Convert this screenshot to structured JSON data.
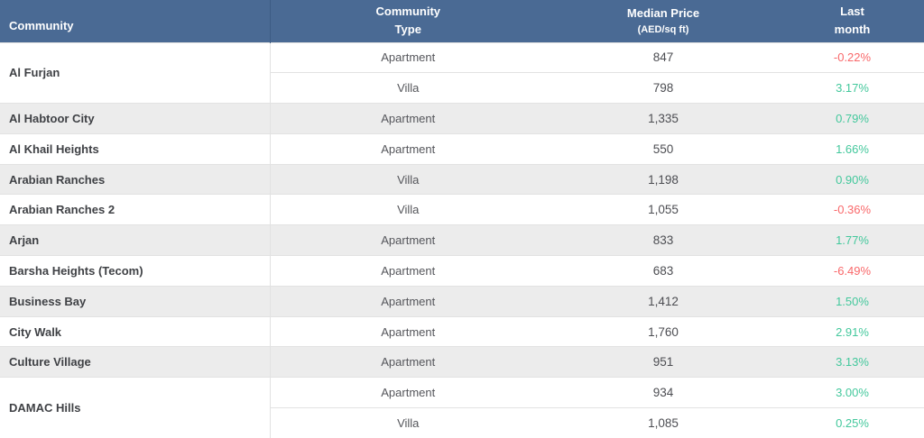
{
  "table": {
    "columns": [
      {
        "lines": [
          "Community"
        ]
      },
      {
        "lines": [
          "Community",
          "Type"
        ]
      },
      {
        "lines": [
          "Median Price",
          "(AED/sq ft)"
        ],
        "second_line_small": true
      },
      {
        "lines": [
          "Last",
          "month"
        ]
      }
    ],
    "groups": [
      {
        "community": "Al Furjan",
        "rows": [
          {
            "type": "Apartment",
            "price": "847",
            "change": "-0.22%",
            "direction": "down"
          },
          {
            "type": "Villa",
            "price": "798",
            "change": "3.17%",
            "direction": "up"
          }
        ]
      },
      {
        "community": "Al Habtoor City",
        "rows": [
          {
            "type": "Apartment",
            "price": "1,335",
            "change": "0.79%",
            "direction": "up"
          }
        ]
      },
      {
        "community": "Al Khail Heights",
        "rows": [
          {
            "type": "Apartment",
            "price": "550",
            "change": "1.66%",
            "direction": "up"
          }
        ]
      },
      {
        "community": "Arabian Ranches",
        "rows": [
          {
            "type": "Villa",
            "price": "1,198",
            "change": "0.90%",
            "direction": "up"
          }
        ]
      },
      {
        "community": "Arabian Ranches 2",
        "rows": [
          {
            "type": "Villa",
            "price": "1,055",
            "change": "-0.36%",
            "direction": "down"
          }
        ]
      },
      {
        "community": "Arjan",
        "rows": [
          {
            "type": "Apartment",
            "price": "833",
            "change": "1.77%",
            "direction": "up"
          }
        ]
      },
      {
        "community": "Barsha Heights (Tecom)",
        "rows": [
          {
            "type": "Apartment",
            "price": "683",
            "change": "-6.49%",
            "direction": "down"
          }
        ]
      },
      {
        "community": "Business Bay",
        "rows": [
          {
            "type": "Apartment",
            "price": "1,412",
            "change": "1.50%",
            "direction": "up"
          }
        ]
      },
      {
        "community": "City Walk",
        "rows": [
          {
            "type": "Apartment",
            "price": "1,760",
            "change": "2.91%",
            "direction": "up"
          }
        ]
      },
      {
        "community": "Culture Village",
        "rows": [
          {
            "type": "Apartment",
            "price": "951",
            "change": "3.13%",
            "direction": "up"
          }
        ]
      },
      {
        "community": "DAMAC Hills",
        "rows": [
          {
            "type": "Apartment",
            "price": "934",
            "change": "3.00%",
            "direction": "up"
          },
          {
            "type": "Villa",
            "price": "1,085",
            "change": "0.25%",
            "direction": "up"
          }
        ]
      }
    ]
  },
  "colors": {
    "header_bg": "#4a6a94",
    "header_divider": "#3d5c84",
    "header_text": "#ffffff",
    "row_gray": "#ececec",
    "row_white": "#ffffff",
    "border": "#e2e2e2",
    "community_text": "#3f4145",
    "body_text": "#55565b",
    "price_text": "#4c4d52",
    "positive": "#43c89c",
    "negative": "#f9686a"
  },
  "chart_data": {
    "type": "table",
    "title": "Community Median Price (AED/sq ft) with Last-month Change",
    "columns": [
      "Community",
      "Community Type",
      "Median Price (AED/sq ft)",
      "Last month (%)"
    ],
    "rows": [
      [
        "Al Furjan",
        "Apartment",
        847,
        -0.22
      ],
      [
        "Al Furjan",
        "Villa",
        798,
        3.17
      ],
      [
        "Al Habtoor City",
        "Apartment",
        1335,
        0.79
      ],
      [
        "Al Khail Heights",
        "Apartment",
        550,
        1.66
      ],
      [
        "Arabian Ranches",
        "Villa",
        1198,
        0.9
      ],
      [
        "Arabian Ranches 2",
        "Villa",
        1055,
        -0.36
      ],
      [
        "Arjan",
        "Apartment",
        833,
        1.77
      ],
      [
        "Barsha Heights (Tecom)",
        "Apartment",
        683,
        -6.49
      ],
      [
        "Business Bay",
        "Apartment",
        1412,
        1.5
      ],
      [
        "City Walk",
        "Apartment",
        1760,
        2.91
      ],
      [
        "Culture Village",
        "Apartment",
        951,
        3.13
      ],
      [
        "DAMAC Hills",
        "Apartment",
        934,
        3.0
      ],
      [
        "DAMAC Hills",
        "Villa",
        1085,
        0.25
      ]
    ],
    "layout_hints": {
      "grouped_by": "Community",
      "striping": "alternating white/gray per community group",
      "positive_change_color": "#43c89c",
      "negative_change_color": "#f9686a"
    }
  }
}
